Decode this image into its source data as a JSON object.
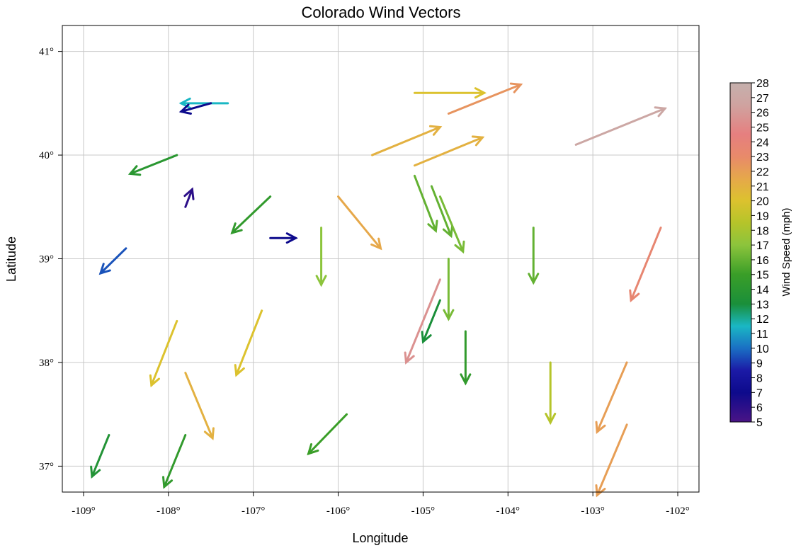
{
  "chart_data": {
    "type": "quiver",
    "title": "Colorado Wind Vectors",
    "xlabel": "Longitude",
    "ylabel": "Latitude",
    "xlim": [
      -109.25,
      -101.75
    ],
    "ylim": [
      36.75,
      41.25
    ],
    "xticks": [
      -109,
      -108,
      -107,
      -106,
      -105,
      -104,
      -103,
      -102
    ],
    "xtick_labels": [
      "-109°",
      "-108°",
      "-107°",
      "-106°",
      "-105°",
      "-104°",
      "-103°",
      "-102°"
    ],
    "yticks": [
      37,
      38,
      39,
      40,
      41
    ],
    "ytick_labels": [
      "37°",
      "38°",
      "39°",
      "40°",
      "41°"
    ],
    "grid": true,
    "colorbar": {
      "label": "Wind Speed (mph)",
      "min": 5,
      "max": 28,
      "ticks": [
        "5",
        "6",
        "7",
        "8",
        "9",
        "10",
        "11",
        "12",
        "13",
        "14",
        "15",
        "16",
        "17",
        "18",
        "19",
        "20",
        "21",
        "22",
        "23",
        "24",
        "25",
        "26",
        "27",
        "28"
      ],
      "colors": [
        {
          "value": 5,
          "color": "#4a1486"
        },
        {
          "value": 7,
          "color": "#0d0a8c"
        },
        {
          "value": 8.5,
          "color": "#1b1aa6"
        },
        {
          "value": 10,
          "color": "#1a6fc4"
        },
        {
          "value": 11.5,
          "color": "#1ab7c4"
        },
        {
          "value": 13,
          "color": "#1a8f3a"
        },
        {
          "value": 15,
          "color": "#3a9e28"
        },
        {
          "value": 17,
          "color": "#8cc43c"
        },
        {
          "value": 18.5,
          "color": "#b5c42a"
        },
        {
          "value": 20,
          "color": "#dcc22e"
        },
        {
          "value": 21.5,
          "color": "#e6a84a"
        },
        {
          "value": 23,
          "color": "#e88a6a"
        },
        {
          "value": 24.5,
          "color": "#e67f7f"
        },
        {
          "value": 26.5,
          "color": "#cfa3a0"
        },
        {
          "value": 28,
          "color": "#c5b0ad"
        }
      ]
    },
    "vectors": [
      {
        "x": -107.3,
        "y": 40.5,
        "x2": -107.85,
        "y2": 40.5,
        "speed": 11.5
      },
      {
        "x": -107.5,
        "y": 40.5,
        "x2": -107.85,
        "y2": 40.42,
        "speed": 7
      },
      {
        "x": -107.9,
        "y": 40.0,
        "x2": -108.45,
        "y2": 39.82,
        "speed": 14
      },
      {
        "x": -107.8,
        "y": 39.5,
        "x2": -107.72,
        "y2": 39.67,
        "speed": 6
      },
      {
        "x": -108.5,
        "y": 39.1,
        "x2": -108.8,
        "y2": 38.86,
        "speed": 9.5
      },
      {
        "x": -106.8,
        "y": 39.6,
        "x2": -107.25,
        "y2": 39.25,
        "speed": 14.5
      },
      {
        "x": -106.8,
        "y": 39.2,
        "x2": -106.5,
        "y2": 39.2,
        "speed": 7
      },
      {
        "x": -106.2,
        "y": 39.3,
        "x2": -106.2,
        "y2": 38.75,
        "speed": 17
      },
      {
        "x": -106.0,
        "y": 39.6,
        "x2": -105.5,
        "y2": 39.1,
        "speed": 21.5
      },
      {
        "x": -105.6,
        "y": 40.0,
        "x2": -104.8,
        "y2": 40.27,
        "speed": 21
      },
      {
        "x": -105.1,
        "y": 40.6,
        "x2": -104.28,
        "y2": 40.6,
        "speed": 20
      },
      {
        "x": -104.7,
        "y": 40.4,
        "x2": -103.85,
        "y2": 40.68,
        "speed": 22.5
      },
      {
        "x": -105.1,
        "y": 39.9,
        "x2": -104.3,
        "y2": 40.17,
        "speed": 21
      },
      {
        "x": -103.2,
        "y": 40.1,
        "x2": -102.15,
        "y2": 40.45,
        "speed": 27
      },
      {
        "x": -105.1,
        "y": 39.8,
        "x2": -104.85,
        "y2": 39.27,
        "speed": 16
      },
      {
        "x": -104.9,
        "y": 39.7,
        "x2": -104.67,
        "y2": 39.22,
        "speed": 16
      },
      {
        "x": -104.8,
        "y": 39.6,
        "x2": -104.53,
        "y2": 39.07,
        "speed": 16.5
      },
      {
        "x": -103.7,
        "y": 39.3,
        "x2": -103.7,
        "y2": 38.77,
        "speed": 16
      },
      {
        "x": -102.2,
        "y": 39.3,
        "x2": -102.55,
        "y2": 38.6,
        "speed": 23.5
      },
      {
        "x": -104.8,
        "y": 38.8,
        "x2": -105.2,
        "y2": 38.0,
        "speed": 25.5
      },
      {
        "x": -104.8,
        "y": 38.6,
        "x2": -105.0,
        "y2": 38.2,
        "speed": 13
      },
      {
        "x": -104.7,
        "y": 39.0,
        "x2": -104.7,
        "y2": 38.42,
        "speed": 16.5
      },
      {
        "x": -104.5,
        "y": 38.3,
        "x2": -104.5,
        "y2": 37.8,
        "speed": 14.5
      },
      {
        "x": -103.5,
        "y": 38.0,
        "x2": -103.5,
        "y2": 37.42,
        "speed": 18.5
      },
      {
        "x": -102.6,
        "y": 38.0,
        "x2": -102.95,
        "y2": 37.33,
        "speed": 22
      },
      {
        "x": -102.6,
        "y": 37.4,
        "x2": -102.95,
        "y2": 36.72,
        "speed": 22
      },
      {
        "x": -107.9,
        "y": 38.4,
        "x2": -108.2,
        "y2": 37.78,
        "speed": 20
      },
      {
        "x": -106.9,
        "y": 38.5,
        "x2": -107.2,
        "y2": 37.88,
        "speed": 20
      },
      {
        "x": -107.8,
        "y": 37.9,
        "x2": -107.48,
        "y2": 37.27,
        "speed": 21
      },
      {
        "x": -105.9,
        "y": 37.5,
        "x2": -106.35,
        "y2": 37.12,
        "speed": 15
      },
      {
        "x": -108.7,
        "y": 37.3,
        "x2": -108.9,
        "y2": 36.9,
        "speed": 13.5
      },
      {
        "x": -107.8,
        "y": 37.3,
        "x2": -108.05,
        "y2": 36.8,
        "speed": 14.5
      }
    ]
  }
}
